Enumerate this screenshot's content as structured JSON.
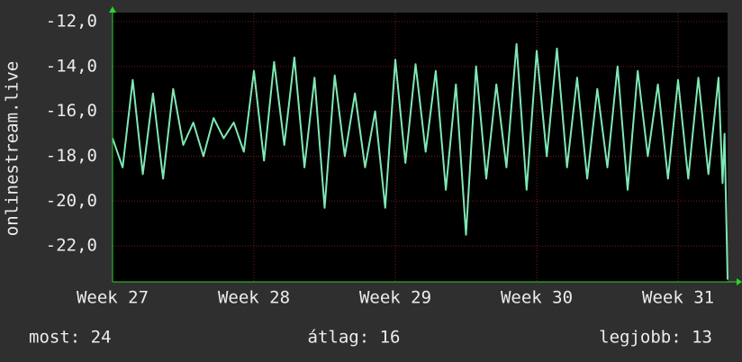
{
  "chart_data": {
    "type": "line",
    "y_label": "onlinestream.live",
    "color": "#7fe8b4",
    "xlim": [
      0,
      30.45
    ],
    "xticks": [
      {
        "value": 0,
        "label": "Week 27"
      },
      {
        "value": 7,
        "label": "Week 28"
      },
      {
        "value": 14,
        "label": "Week 29"
      },
      {
        "value": 21,
        "label": "Week 30"
      },
      {
        "value": 28,
        "label": "Week 31"
      }
    ],
    "ylim": [
      -23.6,
      -11.6
    ],
    "yticks": [
      {
        "value": -12,
        "label": "-12,0"
      },
      {
        "value": -14,
        "label": "-14,0"
      },
      {
        "value": -16,
        "label": "-16,0"
      },
      {
        "value": -18,
        "label": "-18,0"
      },
      {
        "value": -20,
        "label": "-20,0"
      },
      {
        "value": -22,
        "label": "-22,0"
      }
    ],
    "grid": true,
    "x": [
      0,
      0.5,
      1,
      1.5,
      2,
      2.5,
      3,
      3.5,
      4,
      4.5,
      5,
      5.5,
      6,
      6.5,
      7,
      7.5,
      8,
      8.5,
      9,
      9.5,
      10,
      10.5,
      11,
      11.5,
      12,
      12.5,
      13,
      13.5,
      14,
      14.5,
      15,
      15.5,
      16,
      16.5,
      17,
      17.5,
      18,
      18.5,
      19,
      19.5,
      20,
      20.5,
      21,
      21.5,
      22,
      22.5,
      23,
      23.5,
      24,
      24.5,
      25,
      25.5,
      26,
      26.5,
      27,
      27.5,
      28,
      28.5,
      29,
      29.5,
      30,
      30.2,
      30.3,
      30.45
    ],
    "values": [
      -17.2,
      -18.5,
      -14.6,
      -18.8,
      -15.2,
      -19.0,
      -15.0,
      -17.5,
      -16.5,
      -18.0,
      -16.3,
      -17.2,
      -16.5,
      -17.8,
      -14.2,
      -18.2,
      -13.8,
      -17.5,
      -13.6,
      -18.5,
      -14.5,
      -20.3,
      -14.4,
      -18.0,
      -15.2,
      -18.5,
      -16.0,
      -20.3,
      -13.7,
      -18.3,
      -13.9,
      -17.8,
      -14.2,
      -19.5,
      -14.8,
      -21.5,
      -14.0,
      -19.0,
      -14.8,
      -18.5,
      -13.0,
      -19.5,
      -13.3,
      -18.0,
      -13.2,
      -18.5,
      -14.5,
      -19.0,
      -15.0,
      -18.5,
      -14.0,
      -19.5,
      -14.2,
      -18.0,
      -14.8,
      -19.0,
      -14.6,
      -19.0,
      -14.5,
      -18.8,
      -14.5,
      -19.2,
      -17.0,
      -23.5
    ],
    "stats": [
      "most: 24",
      "átlag: 16",
      "legjobb: 13"
    ]
  }
}
